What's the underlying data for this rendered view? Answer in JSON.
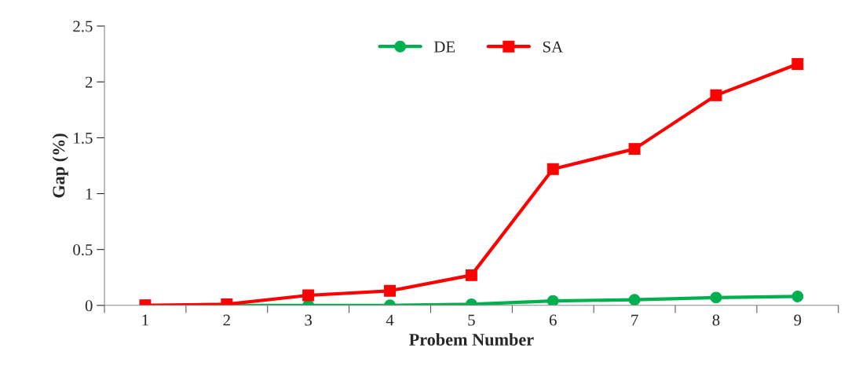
{
  "chart_data": {
    "type": "line",
    "xlabel": "Probem Number",
    "ylabel": "Gap (%)",
    "categories": [
      "1",
      "2",
      "3",
      "4",
      "5",
      "6",
      "7",
      "8",
      "9"
    ],
    "series": [
      {
        "name": "DE",
        "color": "#00b050",
        "marker": "circle",
        "values": [
          0,
          0,
          0,
          0,
          0.01,
          0.04,
          0.05,
          0.07,
          0.08
        ]
      },
      {
        "name": "SA",
        "color": "#ff0000",
        "marker": "square",
        "values": [
          0,
          0.01,
          0.09,
          0.13,
          0.27,
          1.22,
          1.4,
          1.88,
          2.16
        ]
      }
    ],
    "ylim": [
      0,
      2.5
    ],
    "yticks": [
      0,
      0.5,
      1,
      1.5,
      2,
      2.5
    ],
    "grid": false,
    "legend": "top"
  }
}
